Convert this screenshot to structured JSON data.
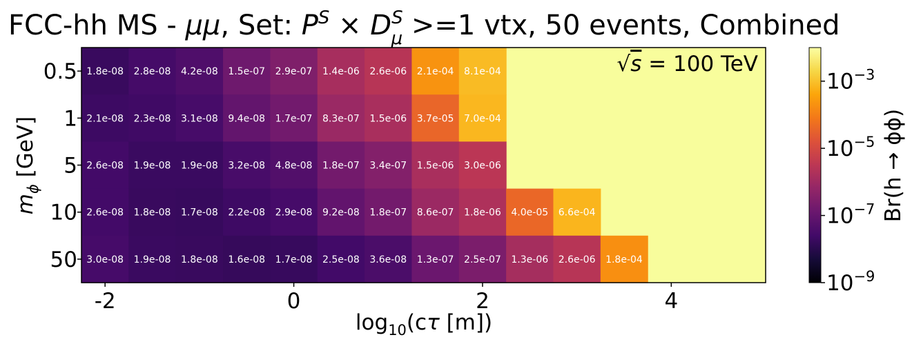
{
  "chart_data": {
    "type": "heatmap",
    "title": "FCC-hh MS - μμ, Set: P^S × D_μ^S >=1 vtx, 50 events, Combined",
    "title_parts": {
      "prefix": "FCC-hh MS - ",
      "mumu": "μμ",
      "set": ", Set: ",
      "P": "P",
      "S1": "S",
      "times": " × ",
      "D": "D",
      "S2": "S",
      "mu": "μ",
      "suffix": " >=1 vtx, 50 events, Combined"
    },
    "annotation": {
      "sqrt": "√",
      "s": "s",
      "rest": " = 100 TeV"
    },
    "xlabel": {
      "log": "log",
      "sub": "10",
      "rest1": "(c",
      "tau": "τ",
      "rest2": " [m])"
    },
    "ylabel": {
      "m": "m",
      "sub": "ϕ",
      "rest": " [GeV]"
    },
    "colorbar_label": "Br(h → ϕϕ)",
    "colorbar_ticks": [
      {
        "value": 0.001,
        "base": "10",
        "exp": "−3"
      },
      {
        "value": 1e-05,
        "base": "10",
        "exp": "−5"
      },
      {
        "value": 1e-07,
        "base": "10",
        "exp": "−7"
      },
      {
        "value": 1e-09,
        "base": "10",
        "exp": "−9"
      }
    ],
    "color_scale": "log",
    "color_range": [
      1e-09,
      0.01
    ],
    "colormap": "inferno",
    "x_range": [
      -2.25,
      5.0
    ],
    "x_ticks": [
      {
        "value": -2,
        "label": "-2"
      },
      {
        "value": 0,
        "label": "0"
      },
      {
        "value": 2,
        "label": "2"
      },
      {
        "value": 4,
        "label": "4"
      }
    ],
    "x_bin_centers": [
      -2.0,
      -1.5,
      -1.0,
      -0.5,
      0.0,
      0.5,
      1.0,
      1.5,
      2.0,
      2.5,
      3.0,
      3.5
    ],
    "x_bin_width": 0.5,
    "y_categories": [
      "0.5",
      "1",
      "5",
      "10",
      "50"
    ],
    "rows": [
      {
        "mass": "0.5",
        "values": [
          "1.8e-08",
          "2.8e-08",
          "4.2e-08",
          "1.5e-07",
          "2.9e-07",
          "1.4e-06",
          "2.6e-06",
          "2.1e-04",
          "8.1e-04"
        ]
      },
      {
        "mass": "1",
        "values": [
          "2.1e-08",
          "2.3e-08",
          "3.1e-08",
          "9.4e-08",
          "1.7e-07",
          "8.3e-07",
          "1.5e-06",
          "3.7e-05",
          "7.0e-04"
        ]
      },
      {
        "mass": "5",
        "values": [
          "2.6e-08",
          "1.9e-08",
          "1.9e-08",
          "3.2e-08",
          "4.8e-08",
          "1.8e-07",
          "3.4e-07",
          "1.5e-06",
          "3.0e-06"
        ]
      },
      {
        "mass": "10",
        "values": [
          "2.6e-08",
          "1.8e-08",
          "1.7e-08",
          "2.2e-08",
          "2.9e-08",
          "9.2e-08",
          "1.8e-07",
          "8.6e-07",
          "1.8e-06",
          "4.0e-05",
          "6.6e-04"
        ]
      },
      {
        "mass": "50",
        "values": [
          "3.0e-08",
          "1.9e-08",
          "1.8e-08",
          "1.6e-08",
          "1.7e-08",
          "2.5e-08",
          "3.6e-08",
          "1.3e-07",
          "2.5e-07",
          "1.3e-06",
          "2.6e-06",
          "1.8e-04"
        ]
      }
    ],
    "background_color": "#f8fd9c"
  }
}
